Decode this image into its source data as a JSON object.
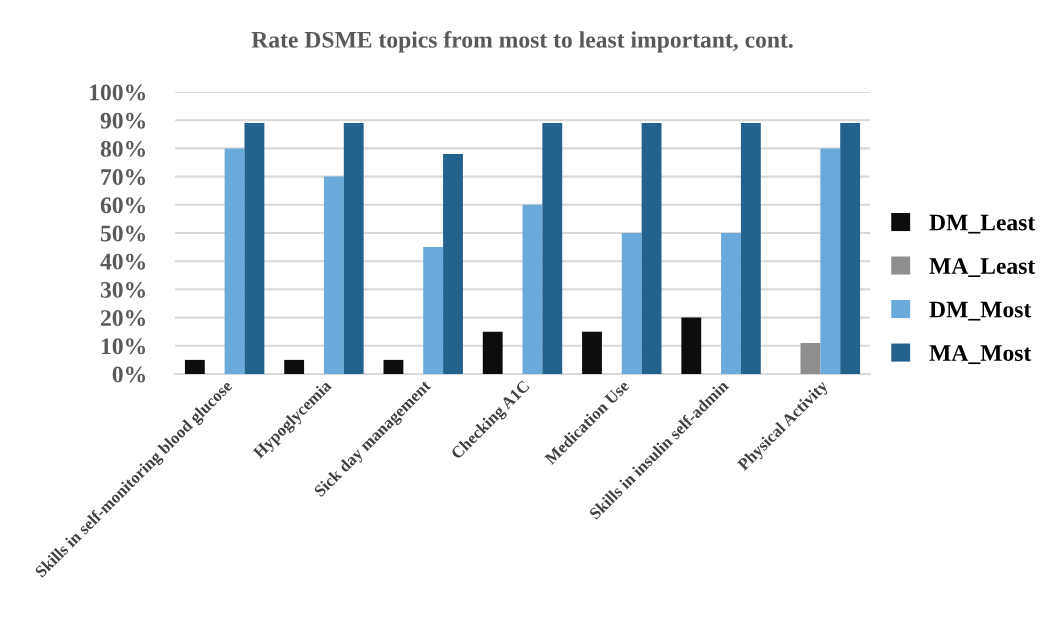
{
  "chart_data": {
    "type": "bar",
    "title": "Rate DSME topics from most to least important, cont.",
    "categories": [
      "Skills in self-monitoring blood glucose",
      "Hypoglycemia",
      "Sick day management",
      "Checking A1C",
      "Medication Use",
      "Skills in insulin self-admin",
      "Physical Activity"
    ],
    "series": [
      {
        "name": "DM_Least",
        "color": "#0d0d0d",
        "values": [
          5,
          5,
          5,
          15,
          15,
          20,
          0
        ]
      },
      {
        "name": "MA_Least",
        "color": "#8f8f8f",
        "values": [
          0,
          0,
          0,
          0,
          0,
          0,
          11
        ]
      },
      {
        "name": "DM_Most",
        "color": "#6aaadb",
        "values": [
          80,
          70,
          45,
          60,
          50,
          50,
          80
        ]
      },
      {
        "name": "MA_Most",
        "color": "#23628d",
        "values": [
          89,
          89,
          78,
          89,
          89,
          89,
          89
        ]
      }
    ],
    "ylim": [
      0,
      100
    ],
    "yticks": [
      {
        "value": 0,
        "label": "0%"
      },
      {
        "value": 10,
        "label": "10%"
      },
      {
        "value": 20,
        "label": "20%"
      },
      {
        "value": 30,
        "label": "30%"
      },
      {
        "value": 40,
        "label": "40%"
      },
      {
        "value": 50,
        "label": "50%"
      },
      {
        "value": 60,
        "label": "60%"
      },
      {
        "value": 70,
        "label": "70%"
      },
      {
        "value": 80,
        "label": "80%"
      },
      {
        "value": 90,
        "label": "90%"
      },
      {
        "value": 100,
        "label": "100%"
      }
    ],
    "grid": "y",
    "legend": "right"
  }
}
